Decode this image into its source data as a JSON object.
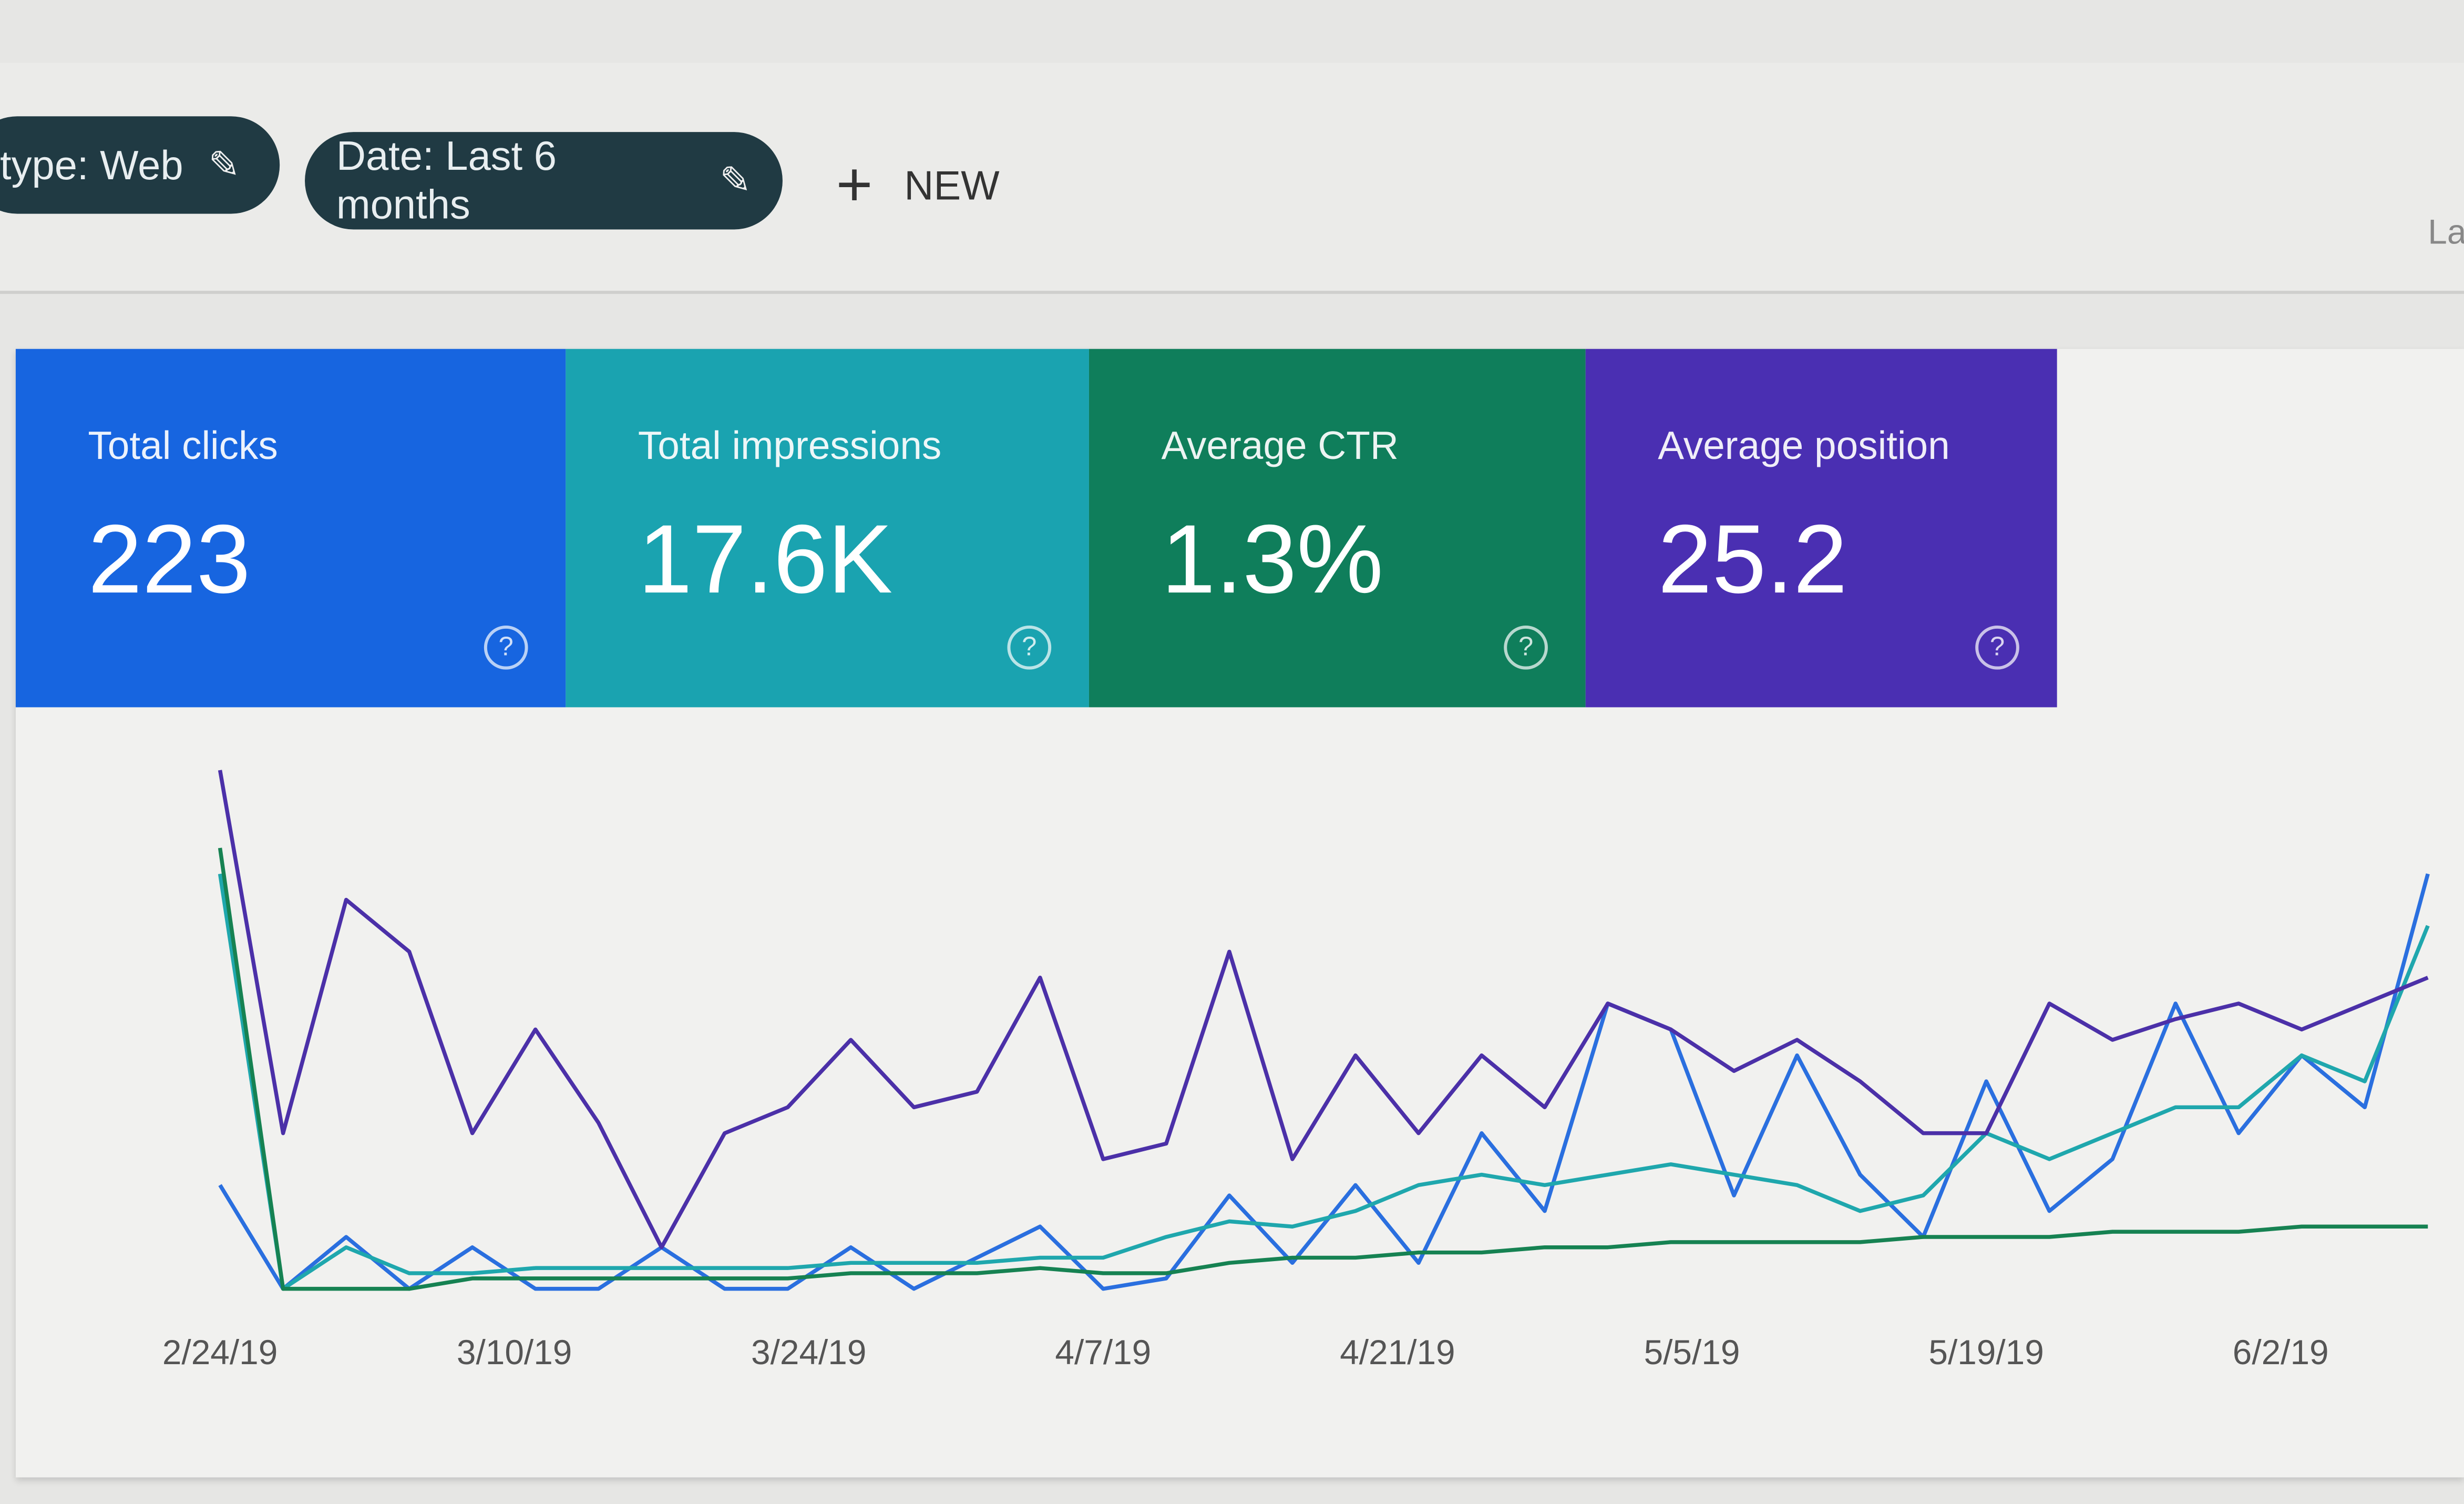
{
  "filters": {
    "chips": [
      {
        "label": "type: Web",
        "icon": "pencil-icon"
      },
      {
        "label": "Date: Last 6 months",
        "icon": "pencil-icon"
      }
    ],
    "new_label": "NEW",
    "new_icon": "plus-icon",
    "cut_off_label": "La"
  },
  "metrics": [
    {
      "label": "Total clicks",
      "value": "223",
      "color": "#1765e0",
      "line_color": "#2a6fdf"
    },
    {
      "label": "Total impressions",
      "value": "17.6K",
      "color": "#1aa3b0",
      "line_color": "#1fa7ad"
    },
    {
      "label": "Average CTR",
      "value": "1.3%",
      "color": "#0f7e5b",
      "line_color": "#168252"
    },
    {
      "label": "Average position",
      "value": "25.2",
      "color": "#4a2fb2",
      "line_color": "#4b30a8"
    }
  ],
  "chart_data": {
    "type": "line",
    "grid": false,
    "x_ticks": [
      "2/24/19",
      "3/10/19",
      "3/24/19",
      "4/7/19",
      "4/21/19",
      "5/5/19",
      "5/19/19",
      "6/2/19"
    ],
    "x": [
      "2/24/19",
      "2/27/19",
      "3/2/19",
      "3/5/19",
      "3/8/19",
      "3/11/19",
      "3/14/19",
      "3/17/19",
      "3/20/19",
      "3/23/19",
      "3/26/19",
      "3/29/19",
      "4/1/19",
      "4/4/19",
      "4/7/19",
      "4/10/19",
      "4/13/19",
      "4/16/19",
      "4/19/19",
      "4/22/19",
      "4/25/19",
      "4/28/19",
      "5/1/19",
      "5/4/19",
      "5/7/19",
      "5/10/19",
      "5/13/19",
      "5/16/19",
      "5/19/19",
      "5/22/19",
      "5/25/19",
      "5/28/19",
      "5/31/19",
      "6/3/19",
      "6/6/19",
      "6/9/19"
    ],
    "series": [
      {
        "metric": 0,
        "values": [
          20,
          0,
          10,
          0,
          8,
          0,
          0,
          8,
          0,
          0,
          8,
          0,
          6,
          12,
          0,
          2,
          18,
          5,
          20,
          5,
          30,
          15,
          55,
          50,
          18,
          45,
          22,
          10,
          40,
          15,
          25,
          55,
          30,
          45,
          35,
          80
        ]
      },
      {
        "metric": 1,
        "values": [
          80,
          0,
          8,
          3,
          3,
          4,
          4,
          4,
          4,
          4,
          5,
          5,
          5,
          6,
          6,
          10,
          13,
          12,
          15,
          20,
          22,
          20,
          22,
          24,
          22,
          20,
          15,
          18,
          30,
          25,
          30,
          35,
          35,
          45,
          40,
          70
        ]
      },
      {
        "metric": 2,
        "values": [
          85,
          0,
          0,
          0,
          2,
          2,
          2,
          2,
          2,
          2,
          3,
          3,
          3,
          4,
          3,
          3,
          5,
          6,
          6,
          7,
          7,
          8,
          8,
          9,
          9,
          9,
          9,
          10,
          10,
          10,
          11,
          11,
          11,
          12,
          12,
          12
        ]
      },
      {
        "metric": 3,
        "values": [
          100,
          30,
          75,
          65,
          30,
          50,
          32,
          8,
          30,
          35,
          48,
          35,
          38,
          60,
          25,
          28,
          65,
          25,
          45,
          30,
          45,
          35,
          55,
          50,
          42,
          48,
          40,
          30,
          30,
          55,
          48,
          52,
          55,
          50,
          55,
          60
        ]
      }
    ]
  }
}
